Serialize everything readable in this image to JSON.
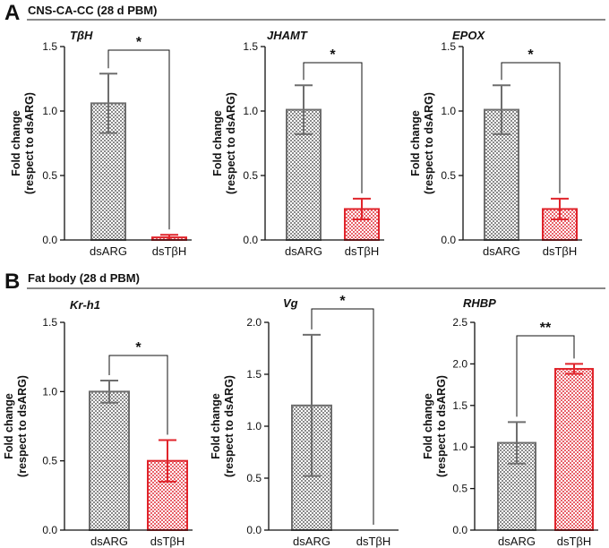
{
  "panels": [
    {
      "letter": "A",
      "title": "CNS-CA-CC (28 d PBM)"
    },
    {
      "letter": "B",
      "title": "Fat body (28 d PBM)"
    }
  ],
  "colors": {
    "control": "#6e6e6e",
    "treatment": "#e0242b"
  },
  "chart_data": [
    {
      "type": "bar",
      "panel": "A",
      "title": "TβH",
      "categories": [
        "dsARG",
        "dsTβH"
      ],
      "values": [
        1.06,
        0.02
      ],
      "error": [
        0.23,
        0.02
      ],
      "ylabel": "Fold change\n(respect to dsARG)",
      "ylim": [
        0,
        1.5
      ],
      "yticks": [
        0.0,
        0.5,
        1.0,
        1.5
      ],
      "yticklabels": [
        "0.0",
        "0.5",
        "1.0",
        "1.5"
      ],
      "significance": "*"
    },
    {
      "type": "bar",
      "panel": "A",
      "title": "JHAMT",
      "categories": [
        "dsARG",
        "dsTβH"
      ],
      "values": [
        1.01,
        0.24
      ],
      "error": [
        0.19,
        0.08
      ],
      "ylabel": "Fold change\n(respect to dsARG)",
      "ylim": [
        0,
        1.5
      ],
      "yticks": [
        0.0,
        0.5,
        1.0,
        1.5
      ],
      "yticklabels": [
        "0.0",
        "0.5",
        "1.0",
        "1.5"
      ],
      "significance": "*"
    },
    {
      "type": "bar",
      "panel": "A",
      "title": "EPOX",
      "categories": [
        "dsARG",
        "dsTβH"
      ],
      "values": [
        1.01,
        0.24
      ],
      "error": [
        0.19,
        0.08
      ],
      "ylabel": "Fold change\n(respect to dsARG)",
      "ylim": [
        0,
        1.5
      ],
      "yticks": [
        0.0,
        0.5,
        1.0,
        1.5
      ],
      "yticklabels": [
        "0.0",
        "0.5",
        "1.0",
        "1.5"
      ],
      "significance": "*"
    },
    {
      "type": "bar",
      "panel": "B",
      "title": "Kr-h1",
      "categories": [
        "dsARG",
        "dsTβH"
      ],
      "values": [
        1.0,
        0.5
      ],
      "error": [
        0.08,
        0.15
      ],
      "ylabel": "Fold change\n(respect to dsARG)",
      "ylim": [
        0,
        1.5
      ],
      "yticks": [
        0.0,
        0.5,
        1.0,
        1.5
      ],
      "yticklabels": [
        "0.0",
        "0.5",
        "1.0",
        "1.5"
      ],
      "significance": "*"
    },
    {
      "type": "bar",
      "panel": "B",
      "title": "Vg",
      "categories": [
        "dsARG",
        "dsTβH"
      ],
      "values": [
        1.2,
        0.0
      ],
      "error": [
        0.68,
        0.0
      ],
      "ylabel": "Fold change\n(respect to dsARG)",
      "ylim": [
        0,
        2.0
      ],
      "yticks": [
        0.0,
        0.5,
        1.0,
        1.5,
        2.0
      ],
      "yticklabels": [
        "0.0",
        "0.5",
        "1.0",
        "1.5",
        "2.0"
      ],
      "significance": "*"
    },
    {
      "type": "bar",
      "panel": "B",
      "title": "RHBP",
      "categories": [
        "dsARG",
        "dsTβH"
      ],
      "values": [
        1.05,
        1.94
      ],
      "error": [
        0.25,
        0.06
      ],
      "ylabel": "Fold change\n(respect to dsARG)",
      "ylim": [
        0,
        2.5
      ],
      "yticks": [
        0.0,
        0.5,
        1.0,
        1.5,
        2.0,
        2.5
      ],
      "yticklabels": [
        "0.0",
        "0.5",
        "1.0",
        "1.5",
        "2.0",
        "2.5"
      ],
      "significance": "**"
    }
  ]
}
